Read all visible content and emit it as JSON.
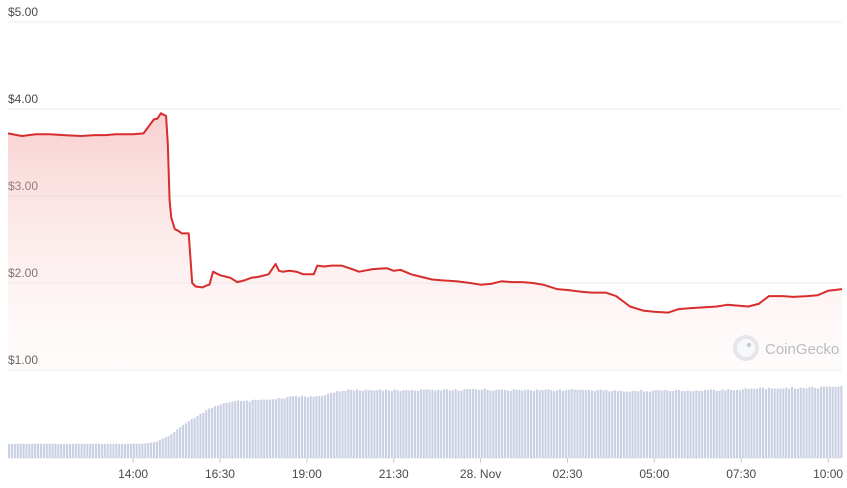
{
  "chart_data": {
    "type": "area",
    "y_tick_labels": [
      "$5.00",
      "$4.00",
      "$3.00",
      "$2.00",
      "$1.00"
    ],
    "y_tick_values": [
      5,
      4,
      3,
      2,
      1
    ],
    "ylim": [
      1,
      5
    ],
    "x_tick_labels": [
      "14:00",
      "16:30",
      "19:00",
      "21:30",
      "28. Nov",
      "02:30",
      "05:00",
      "07:30",
      "10:00"
    ],
    "x_tick_hours": [
      14,
      16.5,
      19,
      21.5,
      24,
      26.5,
      29,
      31.5,
      34
    ],
    "xlim_hours": [
      10.4,
      34.4
    ],
    "series": [
      {
        "type": "line",
        "color": "#d82d2d",
        "x": [
          10.4,
          10.8,
          11.2,
          11.6,
          12.0,
          12.5,
          12.9,
          13.2,
          13.5,
          14.0,
          14.3,
          14.6,
          14.7,
          14.8,
          14.95,
          15.0,
          15.05,
          15.1,
          15.2,
          15.3,
          15.4,
          15.6,
          15.7,
          15.8,
          16.0,
          16.1,
          16.2,
          16.3,
          16.5,
          16.7,
          16.8,
          17.0,
          17.2,
          17.4,
          17.6,
          17.9,
          18.1,
          18.2,
          18.3,
          18.5,
          18.7,
          18.9,
          19.2,
          19.3,
          19.5,
          19.7,
          20.0,
          20.3,
          20.5,
          20.9,
          21.3,
          21.5,
          21.7,
          22.0,
          22.3,
          22.6,
          22.9,
          23.3,
          23.7,
          24.0,
          24.3,
          24.6,
          24.9,
          25.2,
          25.5,
          25.8,
          26.2,
          26.5,
          26.9,
          27.2,
          27.6,
          27.9,
          28.3,
          28.7,
          29.0,
          29.4,
          29.7,
          30.0,
          30.4,
          30.8,
          31.1,
          31.4,
          31.7,
          32.0,
          32.3,
          32.7,
          33.0,
          33.4,
          33.7,
          34.0,
          34.4
        ],
        "values": [
          3.72,
          3.69,
          3.71,
          3.71,
          3.7,
          3.69,
          3.7,
          3.7,
          3.71,
          3.71,
          3.72,
          3.88,
          3.89,
          3.95,
          3.92,
          3.6,
          2.95,
          2.75,
          2.62,
          2.6,
          2.57,
          2.57,
          2.0,
          1.96,
          1.95,
          1.97,
          1.98,
          2.13,
          2.09,
          2.07,
          2.06,
          2.01,
          2.03,
          2.06,
          2.07,
          2.1,
          2.22,
          2.14,
          2.13,
          2.14,
          2.13,
          2.1,
          2.1,
          2.2,
          2.19,
          2.2,
          2.2,
          2.16,
          2.13,
          2.16,
          2.17,
          2.14,
          2.15,
          2.1,
          2.07,
          2.04,
          2.03,
          2.02,
          2.0,
          1.98,
          1.99,
          2.02,
          2.01,
          2.01,
          2.0,
          1.98,
          1.93,
          1.92,
          1.9,
          1.89,
          1.89,
          1.85,
          1.73,
          1.68,
          1.67,
          1.66,
          1.7,
          1.71,
          1.72,
          1.73,
          1.75,
          1.74,
          1.73,
          1.76,
          1.85,
          1.85,
          1.84,
          1.85,
          1.86,
          1.91,
          1.93
        ]
      }
    ],
    "volume_series": {
      "type": "bar",
      "color": "#c9d0e2",
      "x": [
        10.4,
        14.2,
        14.6,
        15.0,
        15.5,
        16.0,
        16.3,
        16.6,
        17.0,
        17.5,
        18.0,
        18.3,
        18.6,
        19.0,
        19.5,
        20.0,
        21.0,
        22.0,
        23.0,
        24.0,
        25.0,
        26.0,
        27.0,
        28.0,
        29.0,
        30.0,
        31.0,
        32.0,
        33.0,
        34.4
      ],
      "levels": [
        0.18,
        0.18,
        0.2,
        0.28,
        0.45,
        0.58,
        0.66,
        0.7,
        0.72,
        0.73,
        0.74,
        0.76,
        0.78,
        0.78,
        0.8,
        0.86,
        0.86,
        0.86,
        0.86,
        0.87,
        0.86,
        0.86,
        0.86,
        0.85,
        0.85,
        0.86,
        0.86,
        0.88,
        0.89,
        0.9
      ]
    },
    "grid": true,
    "watermark": "CoinGecko"
  }
}
